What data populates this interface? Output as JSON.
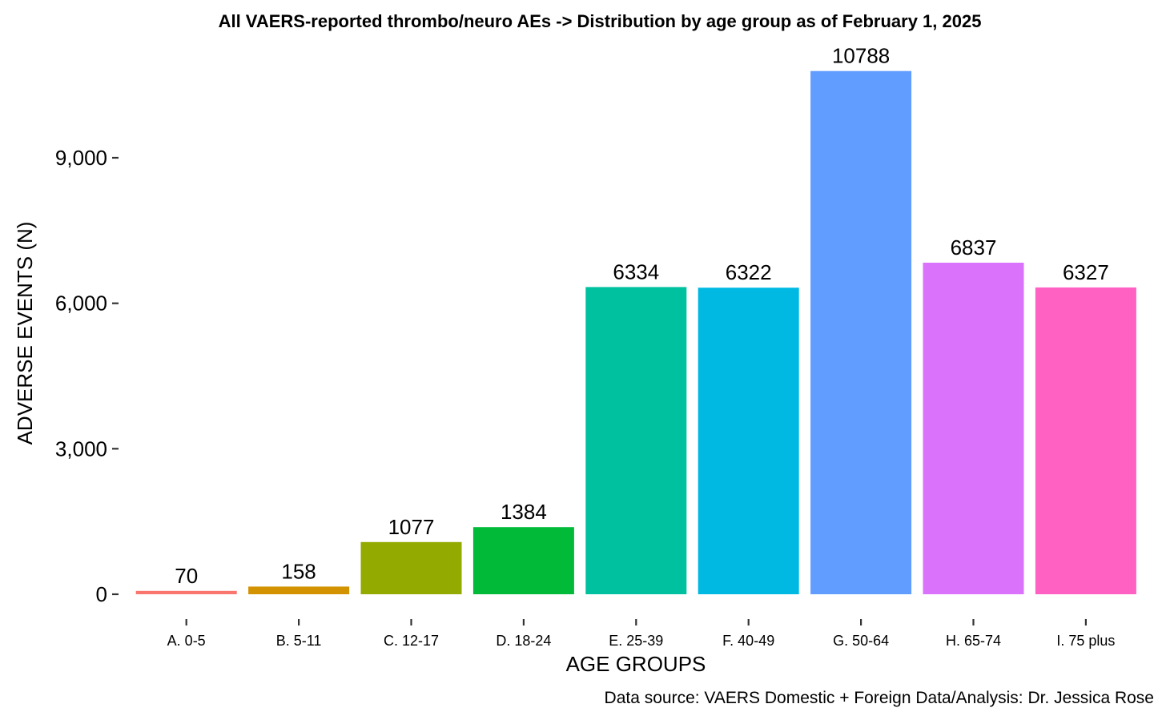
{
  "chart_data": {
    "type": "bar",
    "title": "All VAERS-reported thrombo/neuro AEs -> Distribution by age group as of February 1, 2025",
    "xlabel": "AGE GROUPS",
    "ylabel": "ADVERSE EVENTS (N)",
    "caption": "Data source: VAERS Domestic + Foreign Data/Analysis: Dr. Jessica Rose",
    "categories": [
      "A. 0-5",
      "B. 5-11",
      "C. 12-17",
      "D. 18-24",
      "E. 25-39",
      "F. 40-49",
      "G. 50-64",
      "H. 65-74",
      "I. 75 plus"
    ],
    "values": [
      70,
      158,
      1077,
      1384,
      6334,
      6322,
      10788,
      6837,
      6327
    ],
    "value_labels": [
      "70",
      "158",
      "1077",
      "1384",
      "6334",
      "6322",
      "10788",
      "6837",
      "6327"
    ],
    "colors": [
      "#F8766D",
      "#D39200",
      "#93AA00",
      "#00BA38",
      "#00C19F",
      "#00B9E3",
      "#619CFF",
      "#DB72FB",
      "#FF61C3"
    ],
    "yticks": [
      0,
      3000,
      6000,
      9000
    ],
    "ytick_labels": [
      "0",
      "3,000",
      "6,000",
      "9,000"
    ],
    "ylim": [
      0,
      10788
    ],
    "grid": false,
    "legend": "none"
  }
}
